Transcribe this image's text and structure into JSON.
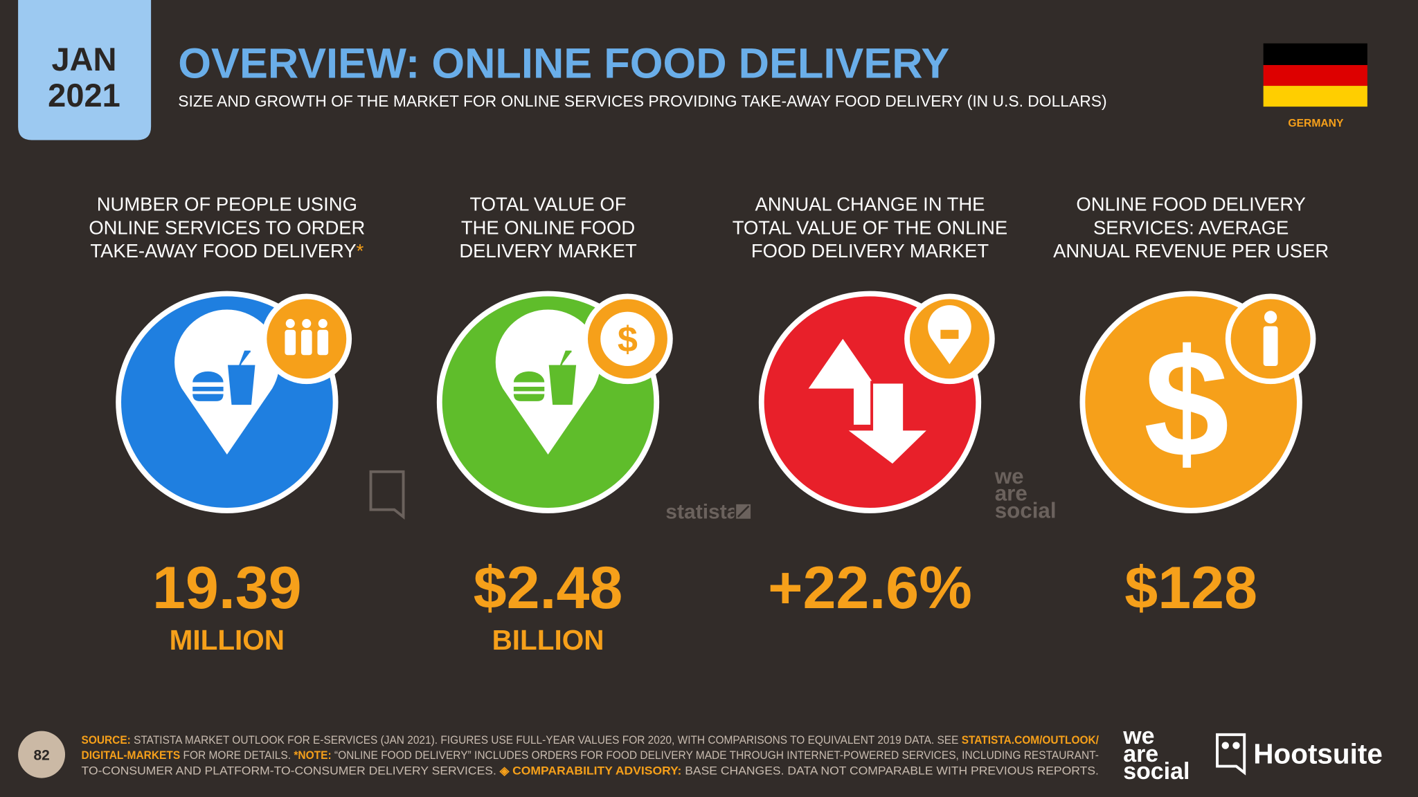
{
  "header": {
    "month": "JAN",
    "year": "2021",
    "title": "OVERVIEW: ONLINE FOOD DELIVERY",
    "subtitle": "SIZE AND GROWTH OF THE MARKET FOR ONLINE SERVICES PROVIDING TAKE-AWAY FOOD DELIVERY (IN U.S. DOLLARS)",
    "country": "GERMANY"
  },
  "panels": [
    {
      "label": [
        "NUMBER OF PEOPLE USING",
        "ONLINE SERVICES TO ORDER",
        "TAKE-AWAY FOOD DELIVERY"
      ],
      "label_marker": "*",
      "value": "19.39",
      "unit": "MILLION",
      "color": "#1f7fe0",
      "icon": "people"
    },
    {
      "label": [
        "TOTAL VALUE OF",
        "THE ONLINE FOOD",
        "DELIVERY MARKET"
      ],
      "value": "$2.48",
      "unit": "BILLION",
      "color": "#5fbd2b",
      "icon": "money",
      "icon_text": "$"
    },
    {
      "label": [
        "ANNUAL CHANGE IN THE",
        "TOTAL VALUE OF THE ONLINE",
        "FOOD DELIVERY MARKET"
      ],
      "value": "+22.6%",
      "color": "#e8202a",
      "icon": "pin"
    },
    {
      "label": [
        "ONLINE FOOD DELIVERY",
        "SERVICES: AVERAGE",
        "ANNUAL REVENUE PER USER"
      ],
      "value": "$128",
      "color": "#f6a01a",
      "icon": "person",
      "icon_text": "$"
    }
  ],
  "watermarks": {
    "statista": "statista",
    "wearesocial": [
      "we",
      "are",
      "social"
    ]
  },
  "footer": {
    "page": "82",
    "lines": [
      [
        {
          "text": "SOURCE:",
          "emphasis": true
        },
        {
          "text": " STATISTA MARKET OUTLOOK FOR E-SERVICES (JAN 2021). FIGURES USE FULL-YEAR VALUES FOR 2020, WITH COMPARISONS TO EQUIVALENT 2019 DATA. SEE ",
          "emphasis": false
        },
        {
          "text": "STATISTA.COM/OUTLOOK/",
          "emphasis": true
        }
      ],
      [
        {
          "text": "DIGITAL-MARKETS",
          "emphasis": true
        },
        {
          "text": " FOR MORE DETAILS. ",
          "emphasis": false
        },
        {
          "text": "*NOTE:",
          "emphasis": true
        },
        {
          "text": " “ONLINE FOOD DELIVERY” INCLUDES ORDERS FOR FOOD DELIVERY MADE THROUGH INTERNET-POWERED SERVICES, INCLUDING RESTAURANT-",
          "emphasis": false
        }
      ],
      [
        {
          "text": "TO-CONSUMER AND PLATFORM-TO-CONSUMER DELIVERY SERVICES. ",
          "emphasis": false
        },
        {
          "text": "◈ COMPARABILITY ADVISORY:",
          "emphasis": true
        },
        {
          "text": " BASE CHANGES. DATA NOT COMPARABLE WITH PREVIOUS REPORTS.",
          "emphasis": false
        }
      ]
    ],
    "logos": {
      "wearesocial": [
        "we",
        "are",
        "social"
      ],
      "hootsuite": "Hootsuite"
    }
  }
}
